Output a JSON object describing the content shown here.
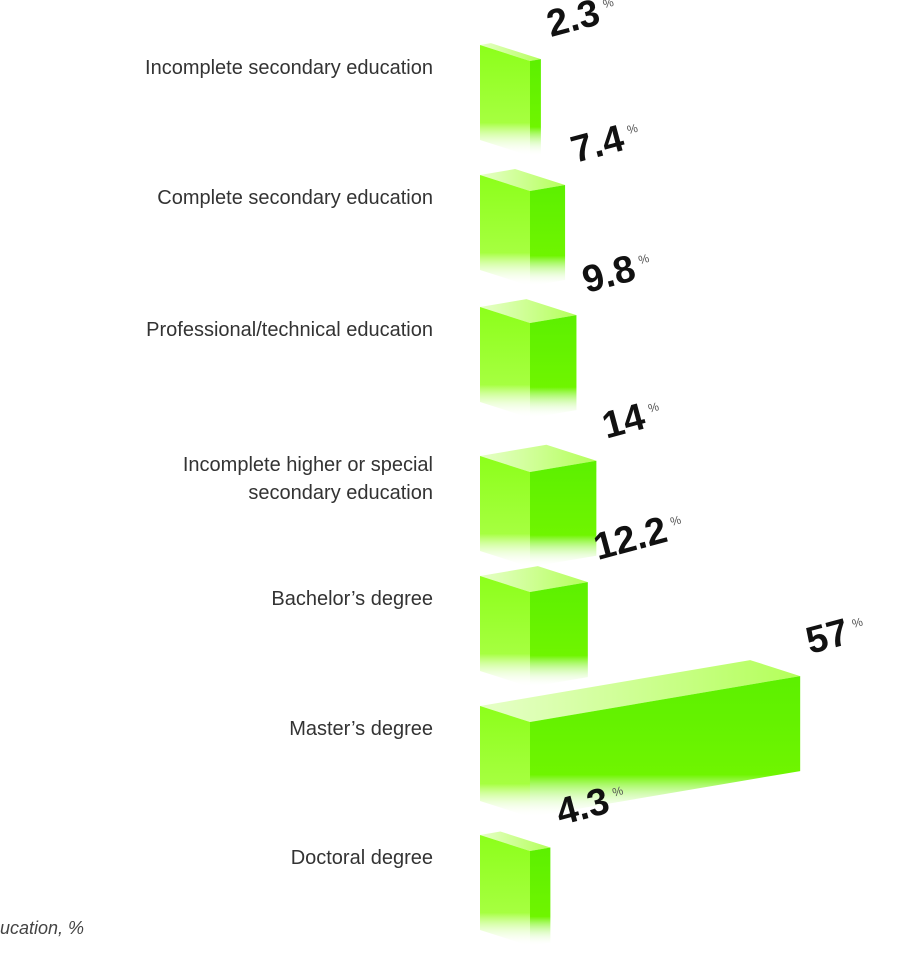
{
  "chart_data": {
    "type": "bar3d",
    "categories": [
      [
        "Incomplete secondary education"
      ],
      [
        "Complete secondary education"
      ],
      [
        "Professional/technical education"
      ],
      [
        "Incomplete higher or special",
        "secondary education"
      ],
      [
        "Bachelor’s degree"
      ],
      [
        "Master’s degree"
      ],
      [
        "Doctoral degree"
      ]
    ],
    "values": [
      2.3,
      7.4,
      9.8,
      14,
      12.2,
      57,
      4.3
    ],
    "unit": "%",
    "color": "#66f500",
    "note": "ucation, %"
  }
}
